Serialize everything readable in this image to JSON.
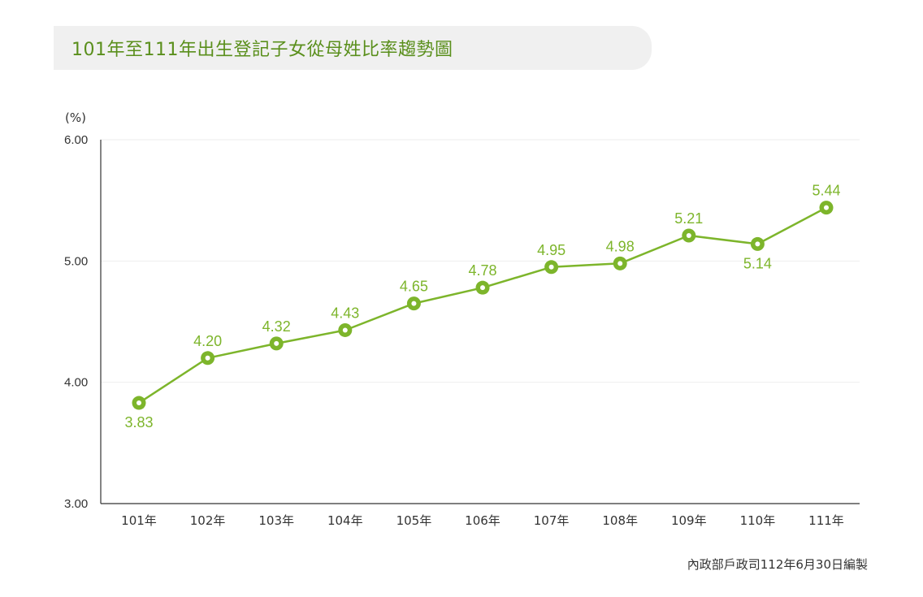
{
  "chart_data": {
    "type": "line",
    "title": "101年至111年出生登記子女從母姓比率趨勢圖",
    "ylabel": "(%)",
    "xlabel": "",
    "ylim": [
      3.0,
      6.0
    ],
    "yticks": [
      "6.00",
      "5.00",
      "4.00",
      "3.00"
    ],
    "categories": [
      "101年",
      "102年",
      "103年",
      "104年",
      "105年",
      "106年",
      "107年",
      "108年",
      "109年",
      "110年",
      "111年"
    ],
    "values": [
      3.83,
      4.2,
      4.32,
      4.43,
      4.65,
      4.78,
      4.95,
      4.98,
      5.21,
      5.14,
      5.44
    ],
    "data_labels": [
      "3.83",
      "4.20",
      "4.32",
      "4.43",
      "4.65",
      "4.78",
      "4.95",
      "4.98",
      "5.21",
      "5.14",
      "5.44"
    ],
    "label_positions": [
      "below",
      "above",
      "above",
      "above",
      "above",
      "above",
      "above",
      "above",
      "above",
      "below",
      "above"
    ],
    "grid": true,
    "legend": "none",
    "line_color": "#7db52b",
    "title_color": "#5a8f1c",
    "source": "內政部戶政司112年6月30日編製"
  }
}
